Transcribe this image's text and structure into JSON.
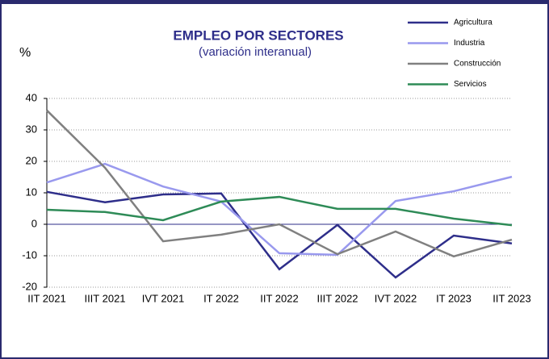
{
  "chart_data": {
    "type": "line",
    "title": "EMPLEO POR SECTORES",
    "subtitle": "(variación interanual)",
    "y_label": "%",
    "categories": [
      "IIT 2021",
      "IIIT 2021",
      "IVT 2021",
      "IT 2022",
      "IIT 2022",
      "IIIT 2022",
      "IVT 2022",
      "IT 2023",
      "IIT 2023"
    ],
    "series": [
      {
        "name": "Agricultura",
        "color": "#2e2e8a",
        "values": [
          10.3,
          7,
          9.5,
          9.8,
          -14.3,
          -0.2,
          -16.9,
          -3.6,
          -6.1
        ]
      },
      {
        "name": "Industria",
        "color": "#9999ee",
        "values": [
          13.3,
          19.2,
          12,
          7.2,
          -9.2,
          -9.7,
          7.4,
          10.5,
          15.1
        ]
      },
      {
        "name": "Construcción",
        "color": "#808080",
        "values": [
          36.2,
          18,
          -5.4,
          -3.3,
          0,
          -9.5,
          -2.3,
          -10.2,
          -4.9
        ]
      },
      {
        "name": "Servicios",
        "color": "#2e8b57",
        "values": [
          4.6,
          3.9,
          1.3,
          7.2,
          8.7,
          4.9,
          4.9,
          1.8,
          -0.3
        ]
      }
    ],
    "ylim": [
      -20,
      40
    ],
    "yticks": [
      -20,
      -10,
      0,
      10,
      20,
      30,
      40
    ],
    "grid": true
  }
}
